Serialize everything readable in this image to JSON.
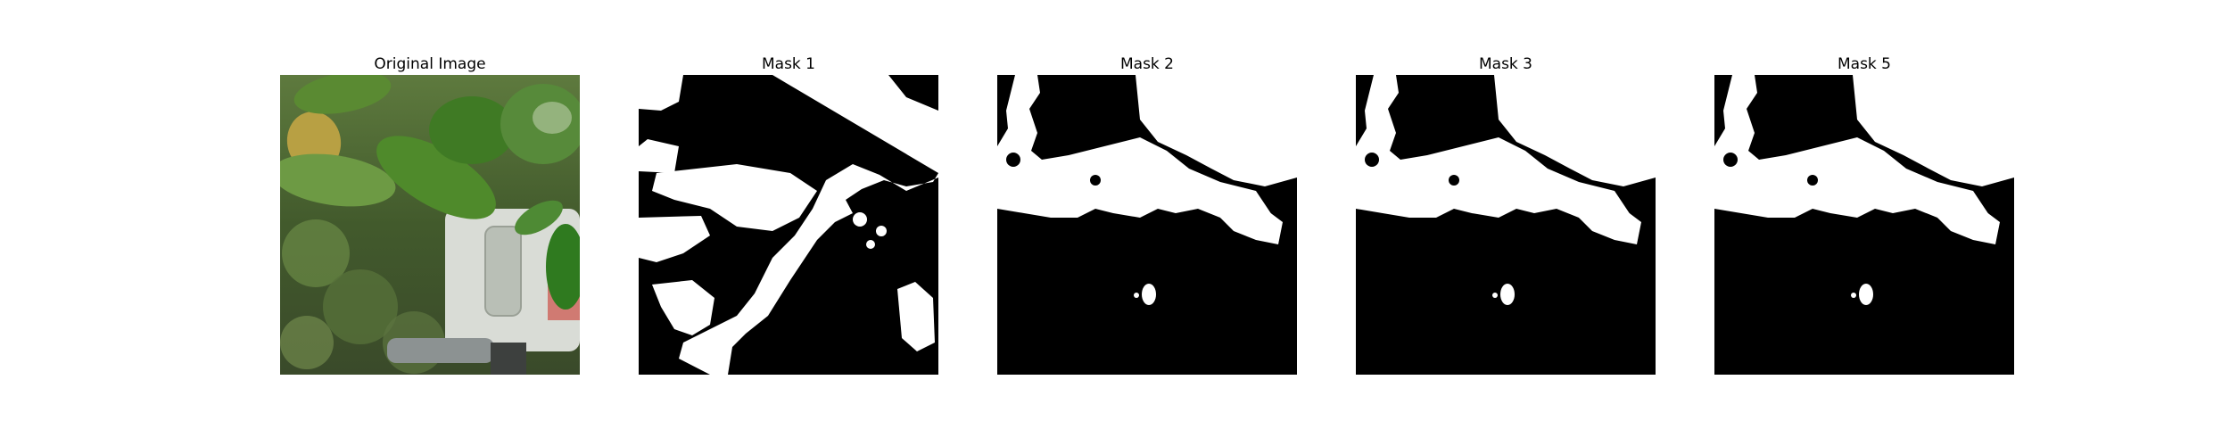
{
  "figure": {
    "background": "#ffffff",
    "panels": [
      {
        "title": "Original Image",
        "kind": "photo",
        "content": "photo of green plant leaves"
      },
      {
        "title": "Mask 1",
        "kind": "mask",
        "mask_fg": "#ffffff",
        "mask_bg": "#000000"
      },
      {
        "title": "Mask 2",
        "kind": "mask",
        "mask_fg": "#ffffff",
        "mask_bg": "#000000"
      },
      {
        "title": "Mask 3",
        "kind": "mask",
        "mask_fg": "#ffffff",
        "mask_bg": "#000000"
      },
      {
        "title": "Mask 5",
        "kind": "mask",
        "mask_fg": "#ffffff",
        "mask_bg": "#000000"
      }
    ]
  }
}
